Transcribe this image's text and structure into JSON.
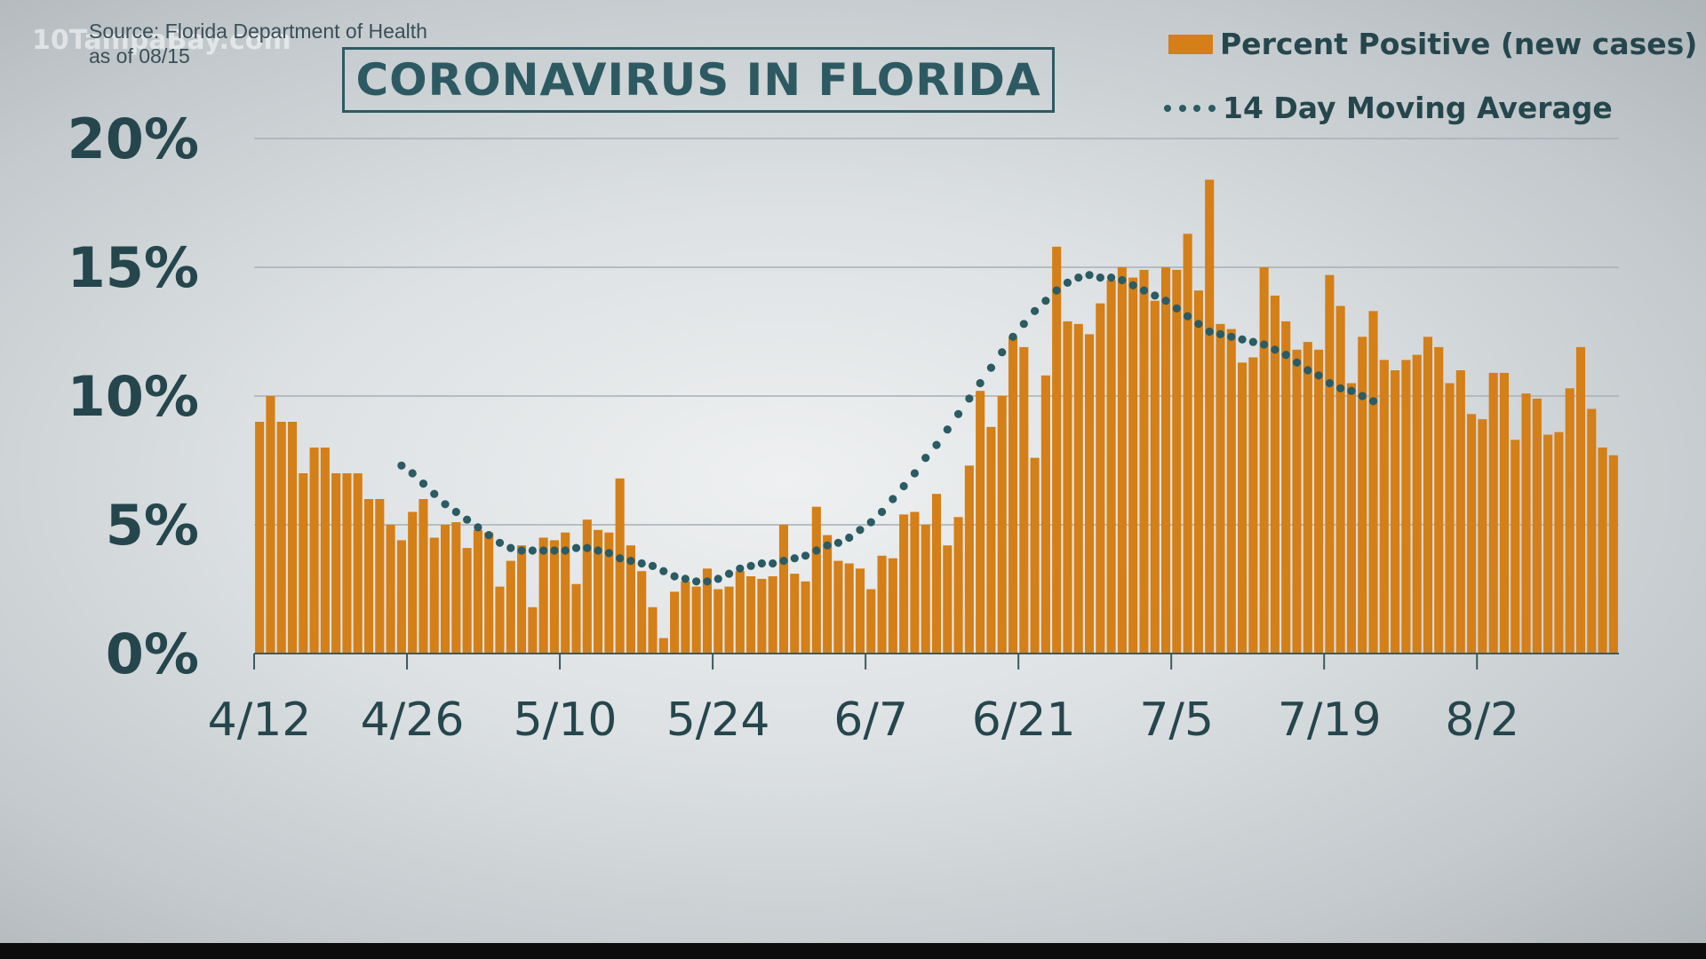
{
  "watermark": "10TampaBay.com",
  "source": "Source: Florida Department of Health",
  "as_of": "as of 08/15",
  "title": "CORONAVIRUS IN FLORIDA",
  "legend": {
    "bars": "Percent Positive (new cases)",
    "average": "14 Day Moving Average"
  },
  "colors": {
    "bar": "#d47f17",
    "average": "#2b5b63",
    "text": "#25464d",
    "grid": "#a7b0b4"
  },
  "chart_data": {
    "type": "bar",
    "title": "CORONAVIRUS IN FLORIDA",
    "xlabel": "",
    "ylabel": "",
    "start_date": "4/12",
    "ylim": [
      0,
      20
    ],
    "y_ticks": [
      0,
      5,
      10,
      15,
      20
    ],
    "y_tick_labels": [
      "0%",
      "5%",
      "10%",
      "15%",
      "20%"
    ],
    "x_tick_labels": [
      "4/12",
      "4/26",
      "5/10",
      "5/24",
      "6/7",
      "6/21",
      "7/5",
      "7/19",
      "8/2"
    ],
    "x_tick_step_days": 14,
    "grid": true,
    "legend_position": "top-right",
    "series": [
      {
        "name": "Percent Positive (new cases)",
        "type": "bar",
        "values": [
          9.0,
          10.0,
          9.0,
          9.0,
          7.0,
          8.0,
          8.0,
          7.0,
          7.0,
          7.0,
          6.0,
          6.0,
          5.0,
          4.4,
          5.5,
          6.0,
          4.5,
          5.0,
          5.1,
          4.1,
          4.8,
          4.7,
          2.6,
          3.6,
          4.2,
          1.8,
          4.5,
          4.4,
          4.7,
          2.7,
          5.2,
          4.8,
          4.7,
          6.8,
          4.2,
          3.2,
          1.8,
          0.6,
          2.4,
          2.8,
          2.6,
          3.3,
          2.5,
          2.6,
          3.2,
          3.0,
          2.9,
          3.0,
          5.0,
          3.1,
          2.8,
          5.7,
          4.6,
          3.6,
          3.5,
          3.3,
          2.5,
          3.8,
          3.7,
          5.4,
          5.5,
          5.0,
          6.2,
          4.2,
          5.3,
          7.3,
          10.2,
          8.8,
          10.0,
          12.3,
          11.9,
          7.6,
          10.8,
          15.8,
          12.9,
          12.8,
          12.4,
          13.6,
          14.5,
          15.0,
          14.6,
          14.9,
          13.7,
          15.0,
          14.9,
          16.3,
          14.1,
          18.4,
          12.8,
          12.6,
          11.3,
          11.5,
          15.0,
          13.9,
          12.9,
          11.8,
          12.1,
          11.8,
          14.7,
          13.5,
          10.5,
          12.3,
          13.3,
          11.4,
          11.0,
          11.4,
          11.6,
          12.3,
          11.9,
          10.5,
          11.0,
          9.3,
          9.1,
          10.9,
          10.9,
          8.3,
          10.1,
          9.9,
          8.5,
          8.6,
          10.3,
          11.9,
          9.5,
          8.0,
          7.7
        ]
      },
      {
        "name": "14 Day Moving Average",
        "type": "line",
        "style": "dotted",
        "start_day_index": 13,
        "values": [
          7.3,
          7.0,
          6.6,
          6.2,
          5.8,
          5.5,
          5.2,
          4.9,
          4.6,
          4.3,
          4.1,
          4.0,
          4.0,
          4.0,
          4.0,
          4.0,
          4.1,
          4.1,
          4.0,
          3.9,
          3.7,
          3.6,
          3.5,
          3.4,
          3.2,
          3.0,
          2.9,
          2.8,
          2.8,
          2.9,
          3.1,
          3.3,
          3.4,
          3.5,
          3.5,
          3.6,
          3.7,
          3.8,
          4.0,
          4.2,
          4.3,
          4.5,
          4.8,
          5.1,
          5.5,
          6.0,
          6.5,
          7.0,
          7.6,
          8.1,
          8.7,
          9.3,
          9.9,
          10.5,
          11.1,
          11.7,
          12.3,
          12.8,
          13.3,
          13.7,
          14.1,
          14.4,
          14.6,
          14.7,
          14.6,
          14.6,
          14.5,
          14.3,
          14.1,
          13.9,
          13.7,
          13.4,
          13.1,
          12.8,
          12.5,
          12.4,
          12.3,
          12.2,
          12.1,
          12.0,
          11.8,
          11.6,
          11.3,
          11.0,
          10.8,
          10.5,
          10.3,
          10.2,
          10.0,
          9.8
        ]
      }
    ]
  }
}
